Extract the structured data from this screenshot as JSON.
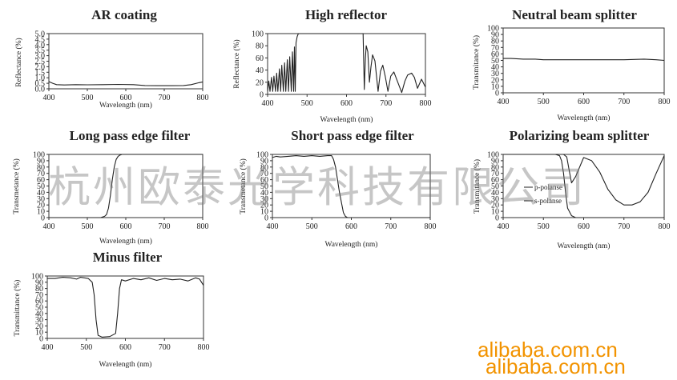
{
  "watermark": {
    "chinese": "杭州欧泰光学科技有限公司",
    "url1": "alibaba.com.cn",
    "url2": "alibaba.com.cn",
    "url_color": "#f29300"
  },
  "chart_data": [
    {
      "id": "ar",
      "type": "line",
      "title": "AR coating",
      "xlabel": "Wavelength (nm)",
      "ylabel": "Reflectance (%)",
      "xlim": [
        400,
        800
      ],
      "ylim": [
        0,
        5
      ],
      "xticks": [
        "400",
        "500",
        "600",
        "700",
        "800"
      ],
      "yticks": [
        "0.0",
        "0.5",
        "1.0",
        "1.5",
        "2.0",
        "2.5",
        "3.0",
        "3.5",
        "4.0",
        "4.5",
        "5.0"
      ],
      "series": [
        {
          "x": [
            400,
            410,
            420,
            440,
            470,
            500,
            540,
            580,
            620,
            650,
            680,
            720,
            750,
            770,
            790,
            800
          ],
          "y": [
            0.65,
            0.5,
            0.38,
            0.35,
            0.38,
            0.36,
            0.38,
            0.4,
            0.38,
            0.3,
            0.28,
            0.28,
            0.3,
            0.38,
            0.55,
            0.62
          ]
        }
      ]
    },
    {
      "id": "hr",
      "type": "line",
      "title": "High reflector",
      "xlabel": "Wavelength (nm)",
      "ylabel": "Reflectance (%)",
      "xlim": [
        400,
        800
      ],
      "ylim": [
        0,
        100
      ],
      "xticks": [
        "400",
        "500",
        "600",
        "700",
        "800"
      ],
      "yticks": [
        "0",
        "20",
        "40",
        "60",
        "80",
        "100"
      ],
      "series": [
        {
          "x": [
            400,
            403,
            406,
            410,
            413,
            416,
            420,
            423,
            426,
            430,
            433,
            436,
            440,
            443,
            446,
            450,
            453,
            456,
            460,
            463,
            466,
            468,
            470,
            472,
            475,
            478,
            480,
            500,
            550,
            600,
            630,
            635,
            640,
            642,
            645,
            648,
            650,
            654,
            658,
            662,
            666,
            672,
            680,
            686,
            692,
            698,
            705,
            712,
            720,
            730,
            740,
            748,
            755,
            765,
            772,
            780,
            790,
            800
          ],
          "y": [
            5,
            22,
            5,
            28,
            5,
            30,
            5,
            35,
            5,
            42,
            5,
            48,
            5,
            52,
            5,
            57,
            5,
            62,
            5,
            70,
            5,
            78,
            5,
            85,
            95,
            100,
            100,
            100,
            100,
            100,
            100,
            100,
            100,
            100,
            8,
            60,
            80,
            70,
            20,
            45,
            65,
            55,
            5,
            38,
            48,
            30,
            5,
            30,
            37,
            20,
            3,
            22,
            32,
            35,
            28,
            10,
            25,
            12
          ]
        }
      ]
    },
    {
      "id": "nbs",
      "type": "line",
      "title": "Neutral beam splitter",
      "xlabel": "Wavelength (nm)",
      "ylabel": "Transmitance (%)",
      "xlim": [
        400,
        800
      ],
      "ylim": [
        0,
        100
      ],
      "xticks": [
        "400",
        "500",
        "600",
        "700",
        "800"
      ],
      "yticks": [
        "0",
        "10",
        "20",
        "30",
        "40",
        "50",
        "60",
        "70",
        "80",
        "90",
        "100"
      ],
      "series": [
        {
          "x": [
            400,
            420,
            450,
            480,
            500,
            550,
            600,
            650,
            700,
            750,
            780,
            800
          ],
          "y": [
            53,
            53,
            52,
            52,
            51,
            51,
            51,
            51,
            51,
            52,
            51,
            50
          ]
        }
      ]
    },
    {
      "id": "lp",
      "type": "line",
      "title": "Long pass edge filter",
      "xlabel": "Wavelength (nm)",
      "ylabel": "Transmetance (%)",
      "xlim": [
        400,
        800
      ],
      "ylim": [
        0,
        100
      ],
      "xticks": [
        "400",
        "500",
        "600",
        "700",
        "800"
      ],
      "yticks": [
        "0",
        "10",
        "20",
        "30",
        "40",
        "50",
        "60",
        "70",
        "80",
        "90",
        "100"
      ],
      "series": [
        {
          "x": [
            400,
            520,
            535,
            545,
            550,
            555,
            560,
            565,
            570,
            575,
            580,
            585,
            590,
            600,
            650,
            700,
            750,
            800
          ],
          "y": [
            0,
            0,
            0,
            2,
            5,
            15,
            35,
            60,
            80,
            92,
            97,
            99,
            100,
            100,
            100,
            100,
            100,
            100
          ]
        }
      ]
    },
    {
      "id": "sp",
      "type": "line",
      "title": "Short pass edge filter",
      "xlabel": "Wavelength (nm)",
      "ylabel": "Transmetance (%)",
      "xlim": [
        400,
        800
      ],
      "ylim": [
        0,
        100
      ],
      "xticks": [
        "400",
        "500",
        "600",
        "700",
        "800"
      ],
      "yticks": [
        "0",
        "10",
        "20",
        "30",
        "40",
        "50",
        "60",
        "70",
        "80",
        "90",
        "100"
      ],
      "series": [
        {
          "x": [
            400,
            410,
            420,
            440,
            460,
            480,
            500,
            520,
            540,
            550,
            555,
            560,
            570,
            580,
            585,
            590,
            600,
            650,
            700,
            800
          ],
          "y": [
            95,
            97,
            96,
            97,
            98,
            97,
            98,
            97,
            98,
            98,
            92,
            80,
            40,
            8,
            2,
            0,
            0,
            0,
            0,
            0
          ]
        }
      ]
    },
    {
      "id": "pbs",
      "type": "line",
      "title": "Polarizing beam splitter",
      "xlabel": "Wavelength (nm)",
      "ylabel": "Transmitance (%)",
      "xlim": [
        400,
        800
      ],
      "ylim": [
        0,
        100
      ],
      "xticks": [
        "400",
        "500",
        "600",
        "700",
        "800"
      ],
      "yticks": [
        "0",
        "10",
        "20",
        "30",
        "40",
        "50",
        "60",
        "70",
        "80",
        "90",
        "100"
      ],
      "legend": [
        "p-polanse",
        "s-polanse"
      ],
      "series": [
        {
          "name": "p-polanse",
          "x": [
            400,
            450,
            500,
            540,
            550,
            558,
            564,
            570,
            580,
            600,
            620,
            640,
            660,
            680,
            700,
            720,
            740,
            760,
            780,
            800
          ],
          "y": [
            100,
            100,
            100,
            100,
            100,
            96,
            75,
            55,
            65,
            95,
            90,
            72,
            45,
            28,
            20,
            20,
            25,
            40,
            70,
            98
          ]
        },
        {
          "name": "s-polanse",
          "x": [
            400,
            450,
            500,
            530,
            540,
            545,
            550,
            555,
            560,
            570,
            580,
            600,
            650,
            700,
            800
          ],
          "y": [
            100,
            100,
            100,
            100,
            98,
            90,
            70,
            40,
            15,
            3,
            0,
            0,
            0,
            0,
            0
          ]
        }
      ]
    },
    {
      "id": "minus",
      "type": "line",
      "title": "Minus filter",
      "xlabel": "Wavelength (nm)",
      "ylabel": "Transmittance (%)",
      "xlim": [
        400,
        800
      ],
      "ylim": [
        0,
        100
      ],
      "xticks": [
        "400",
        "500",
        "600",
        "700",
        "800"
      ],
      "yticks": [
        "0",
        "10",
        "20",
        "30",
        "40",
        "50",
        "60",
        "70",
        "80",
        "90",
        "100"
      ],
      "series": [
        {
          "x": [
            400,
            420,
            440,
            460,
            475,
            485,
            495,
            505,
            515,
            520,
            525,
            530,
            540,
            560,
            575,
            580,
            585,
            590,
            600,
            620,
            640,
            660,
            680,
            700,
            720,
            740,
            760,
            780,
            790,
            800
          ],
          "y": [
            96,
            96,
            98,
            97,
            95,
            98,
            97,
            96,
            90,
            70,
            30,
            5,
            2,
            3,
            8,
            40,
            80,
            94,
            92,
            96,
            94,
            97,
            93,
            96,
            94,
            95,
            92,
            97,
            95,
            85
          ]
        }
      ]
    }
  ]
}
